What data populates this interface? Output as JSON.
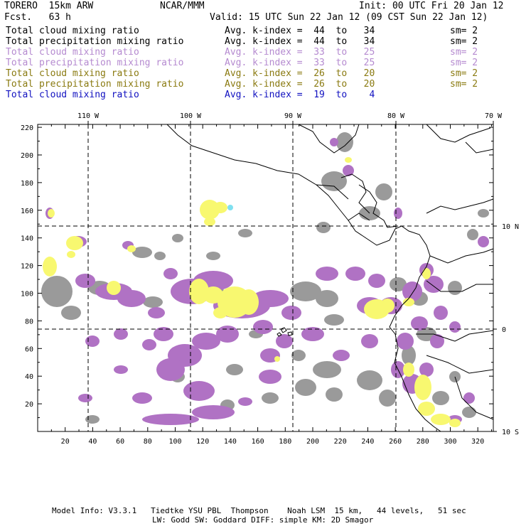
{
  "header": {
    "model": "TORERO  15km ARW",
    "center": "NCAR/MMM",
    "init": "Init: 00 UTC Fri 20 Jan 12",
    "fcst": "Fcst.   63 h",
    "valid": "Valid: 15 UTC Sun 22 Jan 12 (09 CST Sun 22 Jan 12)"
  },
  "legend": [
    {
      "label": "Total cloud mixing ratio",
      "stat": "Avg. k-index =  44  to   34",
      "sm": "sm= 2",
      "color": "#000000"
    },
    {
      "label": "Total precipitation mixing ratio",
      "stat": "Avg. k-index =  44  to   34",
      "sm": "sm= 2",
      "color": "#000000"
    },
    {
      "label": "Total cloud mixing ratio",
      "stat": "Avg. k-index =  33  to   25",
      "sm": "sm= 2",
      "color": "#b58ad0"
    },
    {
      "label": "Total precipitation mixing ratio",
      "stat": "Avg. k-index =  33  to   25",
      "sm": "sm= 2",
      "color": "#b58ad0"
    },
    {
      "label": "Total cloud mixing ratio",
      "stat": "Avg. k-index =  26  to   20",
      "sm": "sm= 2",
      "color": "#8a7a10"
    },
    {
      "label": "Total precipitation mixing ratio",
      "stat": "Avg. k-index =  26  to   20",
      "sm": "sm= 2",
      "color": "#8a7a10"
    },
    {
      "label": "Total cloud mixing ratio",
      "stat": "Avg. k-index =  19  to    4",
      "sm": "",
      "color": "#1010c0"
    }
  ],
  "map": {
    "lon_labels": [
      "110 W",
      "100 W",
      "90 W",
      "80 W",
      "70 W"
    ],
    "lat_labels": [
      "10 N",
      "0",
      "10 S"
    ],
    "x_ticks": [
      "20",
      "40",
      "60",
      "80",
      "100",
      "120",
      "140",
      "160",
      "180",
      "200",
      "220",
      "240",
      "260",
      "280",
      "300",
      "320"
    ],
    "y_ticks": [
      "220",
      "200",
      "180",
      "160",
      "140",
      "120",
      "100",
      "80",
      "60",
      "40",
      "20"
    ],
    "colors": {
      "gray": "#9a9a9a",
      "purple": "#b072c4",
      "yellow": "#f8f870",
      "cyan": "#80e0f0"
    }
  },
  "footer": {
    "line1": "Model Info: V3.3.1   Tiedtke YSU PBL  Thompson    Noah LSM  15 km,   44 levels,   51 sec",
    "line2": "LW: Godd SW: Goddard DIFF: simple KM: 2D Smagor"
  }
}
